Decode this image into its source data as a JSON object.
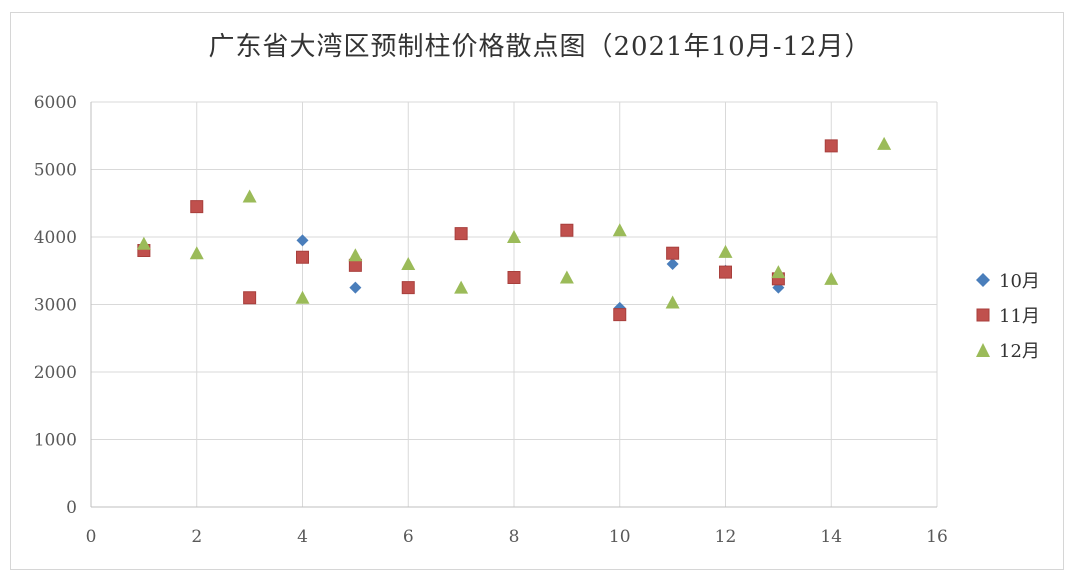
{
  "chart_data": {
    "type": "scatter",
    "title": "广东省大湾区预制柱价格散点图（2021年10月-12月）",
    "xlim": [
      0,
      16
    ],
    "ylim": [
      0,
      6000
    ],
    "xticks": [
      "0",
      "2",
      "4",
      "6",
      "8",
      "10",
      "12",
      "14",
      "16"
    ],
    "yticks": [
      "0",
      "1000",
      "2000",
      "3000",
      "4000",
      "5000",
      "6000"
    ],
    "grid": true,
    "legend_position": "right",
    "series": [
      {
        "name": "10月",
        "marker": "diamond",
        "color": "#4a7ebb",
        "points": [
          [
            1,
            3850
          ],
          [
            2,
            4450
          ],
          [
            3,
            3100
          ],
          [
            4,
            3950
          ],
          [
            5,
            3250
          ],
          [
            6,
            3250
          ],
          [
            7,
            4050
          ],
          [
            8,
            3400
          ],
          [
            9,
            4100
          ],
          [
            10,
            2950
          ],
          [
            11,
            3600
          ],
          [
            12,
            3500
          ],
          [
            13,
            3250
          ],
          [
            14,
            5350
          ]
        ]
      },
      {
        "name": "11月",
        "marker": "square",
        "color": "#c0504d",
        "points": [
          [
            1,
            3800
          ],
          [
            2,
            4450
          ],
          [
            3,
            3100
          ],
          [
            4,
            3700
          ],
          [
            5,
            3580
          ],
          [
            6,
            3250
          ],
          [
            7,
            4050
          ],
          [
            8,
            3400
          ],
          [
            9,
            4100
          ],
          [
            10,
            2850
          ],
          [
            11,
            3760
          ],
          [
            12,
            3480
          ],
          [
            13,
            3380
          ],
          [
            14,
            5350
          ]
        ]
      },
      {
        "name": "12月",
        "marker": "triangle",
        "color": "#9bbb59",
        "points": [
          [
            1,
            3900
          ],
          [
            2,
            3760
          ],
          [
            3,
            4600
          ],
          [
            4,
            3100
          ],
          [
            5,
            3730
          ],
          [
            6,
            3600
          ],
          [
            7,
            3250
          ],
          [
            8,
            4000
          ],
          [
            9,
            3400
          ],
          [
            10,
            4100
          ],
          [
            11,
            3030
          ],
          [
            12,
            3780
          ],
          [
            13,
            3480
          ],
          [
            14,
            3380
          ],
          [
            15,
            5380
          ]
        ]
      }
    ]
  }
}
